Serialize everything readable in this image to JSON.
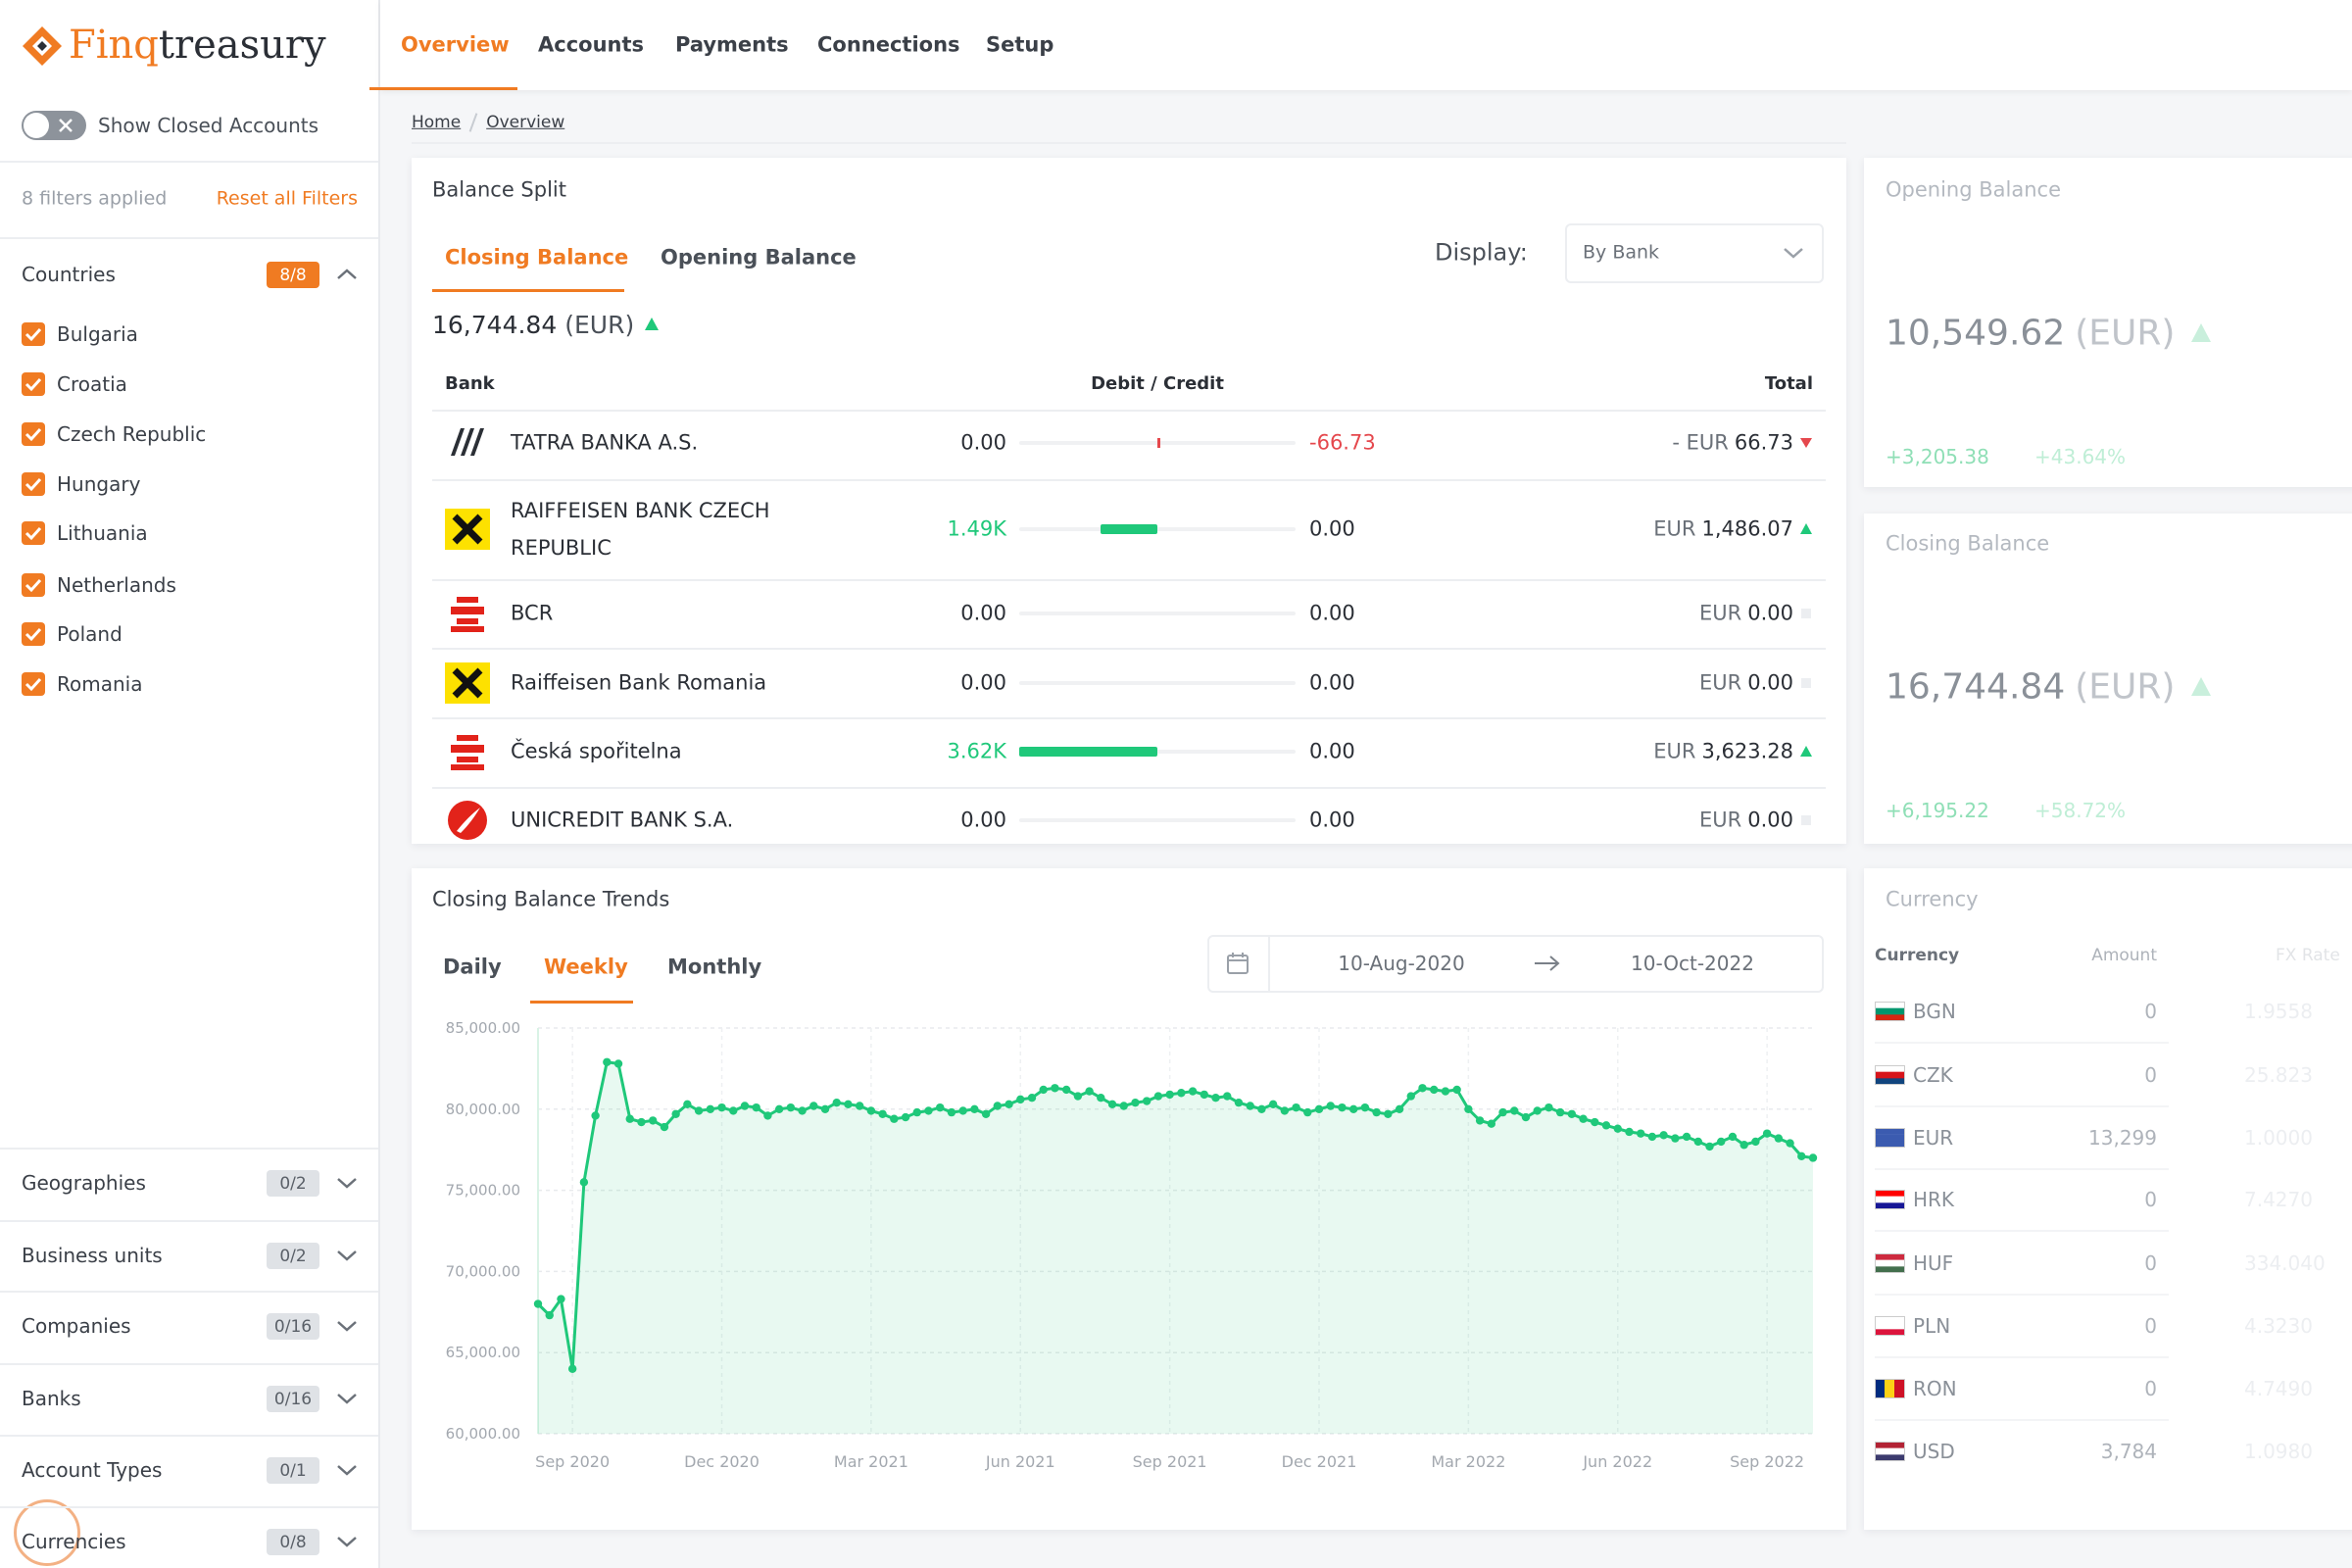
{
  "header": {
    "logo": [
      "Finq",
      "treasury"
    ],
    "nav": [
      "Overview",
      "Accounts",
      "Payments",
      "Connections",
      "Setup"
    ],
    "active_nav": 0
  },
  "sidebar": {
    "toggle_label": "Show Closed Accounts",
    "filters_applied": "8 filters applied",
    "reset": "Reset all Filters",
    "countries": {
      "title": "Countries",
      "badge": "8/8",
      "items": [
        "Bulgaria",
        "Croatia",
        "Czech Republic",
        "Hungary",
        "Lithuania",
        "Netherlands",
        "Poland",
        "Romania"
      ]
    },
    "groups": [
      {
        "title": "Geographies",
        "badge": "0/2"
      },
      {
        "title": "Business units",
        "badge": "0/2"
      },
      {
        "title": "Companies",
        "badge": "0/16"
      },
      {
        "title": "Banks",
        "badge": "0/16"
      },
      {
        "title": "Account Types",
        "badge": "0/1"
      },
      {
        "title": "Currencies",
        "badge": "0/8"
      }
    ]
  },
  "breadcrumb": [
    "Home",
    "Overview"
  ],
  "balance_split": {
    "title": "Balance Split",
    "tabs": [
      "Closing Balance",
      "Opening Balance"
    ],
    "active_tab": 0,
    "display_label": "Display:",
    "display_value": "By Bank",
    "total": "16,744.84",
    "total_currency": "(EUR)",
    "columns": [
      "Bank",
      "Debit / Credit",
      "Total"
    ],
    "rows": [
      {
        "bank": "TATRA BANKA A.S.",
        "debit": {
          "value": 0,
          "label": "0.00"
        },
        "credit": {
          "value": -66.73,
          "label": "-66.73"
        },
        "total_prefix": "- EUR",
        "total": "66.73",
        "trend": "down"
      },
      {
        "bank": "RAIFFEISEN BANK CZECH REPUBLIC",
        "debit": {
          "value": 1486.07,
          "label": "1.49K"
        },
        "credit": {
          "value": 0,
          "label": "0.00"
        },
        "total_prefix": "EUR",
        "total": "1,486.07",
        "trend": "up"
      },
      {
        "bank": "BCR",
        "debit": {
          "value": 0,
          "label": "0.00"
        },
        "credit": {
          "value": 0,
          "label": "0.00"
        },
        "total_prefix": "EUR",
        "total": "0.00",
        "trend": "flat"
      },
      {
        "bank": "Raiffeisen Bank Romania",
        "debit": {
          "value": 0,
          "label": "0.00"
        },
        "credit": {
          "value": 0,
          "label": "0.00"
        },
        "total_prefix": "EUR",
        "total": "0.00",
        "trend": "flat"
      },
      {
        "bank": "Česká spořitelna",
        "debit": {
          "value": 3623.28,
          "label": "3.62K"
        },
        "credit": {
          "value": 0,
          "label": "0.00"
        },
        "total_prefix": "EUR",
        "total": "3,623.28",
        "trend": "up"
      },
      {
        "bank": "UNICREDIT BANK S.A.",
        "debit": {
          "value": 0,
          "label": "0.00"
        },
        "credit": {
          "value": 0,
          "label": "0.00"
        },
        "total_prefix": "EUR",
        "total": "0.00",
        "trend": "flat"
      }
    ]
  },
  "opening_balance": {
    "title": "Opening Balance",
    "value": "10,549.62",
    "currency": "(EUR)",
    "change": "+3,205.38",
    "change_pct": "+43.64%"
  },
  "closing_balance": {
    "title": "Closing Balance",
    "value": "16,744.84",
    "currency": "(EUR)",
    "change": "+6,195.22",
    "change_pct": "+58.72%"
  },
  "currency": {
    "title": "Currency",
    "columns": [
      "Currency",
      "Amount",
      "FX Rate"
    ],
    "rows": [
      [
        "BGN",
        "0",
        "1.9558"
      ],
      [
        "CZK",
        "0",
        "25.823"
      ],
      [
        "EUR",
        "13,299",
        "1.0000"
      ],
      [
        "HRK",
        "0",
        "7.4270"
      ],
      [
        "HUF",
        "0",
        "334.040"
      ],
      [
        "PLN",
        "0",
        "4.3230"
      ],
      [
        "RON",
        "0",
        "4.7490"
      ],
      [
        "USD",
        "3,784",
        "1.0980"
      ]
    ]
  },
  "trends": {
    "tabs": [
      "Daily",
      "Weekly",
      "Monthly"
    ],
    "active_tab": 1,
    "date_from": "10-Aug-2020",
    "date_to": "10-Oct-2022"
  },
  "chart_data": {
    "type": "line",
    "title": "Closing Balance Trends",
    "color": "#1fc87a",
    "grid": true,
    "categories": [
      null,
      null,
      null,
      "Sep 2020",
      null,
      null,
      null,
      null,
      null,
      null,
      null,
      null,
      null,
      null,
      null,
      null,
      "Dec 2020",
      null,
      null,
      null,
      null,
      null,
      null,
      null,
      null,
      null,
      null,
      null,
      null,
      "Mar 2021",
      null,
      null,
      null,
      null,
      null,
      null,
      null,
      null,
      null,
      null,
      null,
      null,
      "Jun 2021",
      null,
      null,
      null,
      null,
      null,
      null,
      null,
      null,
      null,
      null,
      null,
      null,
      "Sep 2021",
      null,
      null,
      null,
      null,
      null,
      null,
      null,
      null,
      null,
      null,
      null,
      null,
      "Dec 2021",
      null,
      null,
      null,
      null,
      null,
      null,
      null,
      null,
      null,
      null,
      null,
      null,
      "Mar 2022",
      null,
      null,
      null,
      null,
      null,
      null,
      null,
      null,
      null,
      null,
      null,
      null,
      "Jun 2022",
      null,
      null,
      null,
      null,
      null,
      null,
      null,
      null,
      null,
      null,
      null,
      null,
      "Sep 2022",
      null,
      null,
      null,
      null
    ],
    "values": [
      68000,
      67300,
      68300,
      64000,
      75500,
      79600,
      82900,
      82800,
      79400,
      79200,
      79300,
      78900,
      79700,
      80300,
      79900,
      80000,
      80100,
      79900,
      80200,
      80100,
      79600,
      80000,
      80100,
      79900,
      80200,
      80000,
      80400,
      80300,
      80200,
      79900,
      79700,
      79400,
      79500,
      79800,
      79900,
      80100,
      79800,
      79900,
      80000,
      79700,
      80200,
      80300,
      80600,
      80700,
      81200,
      81300,
      81200,
      80800,
      81100,
      80700,
      80300,
      80200,
      80400,
      80500,
      80800,
      80900,
      81000,
      81100,
      80900,
      80700,
      80800,
      80400,
      80200,
      80000,
      80300,
      79900,
      80100,
      79800,
      80000,
      80200,
      80100,
      80000,
      80100,
      79800,
      79700,
      80000,
      80800,
      81300,
      81200,
      81100,
      81200,
      80000,
      79300,
      79100,
      79800,
      79900,
      79500,
      79900,
      80100,
      79800,
      79700,
      79400,
      79200,
      79000,
      78800,
      78600,
      78500,
      78300,
      78400,
      78200,
      78300,
      78000,
      77700,
      78000,
      78300,
      77800,
      78000,
      78500,
      78200,
      77900,
      77100,
      77000
    ],
    "ylim": [
      60000,
      85000
    ],
    "yticks": [
      {
        "value": 60000,
        "label": "60,000.00"
      },
      {
        "value": 65000,
        "label": "65,000.00"
      },
      {
        "value": 70000,
        "label": "70,000.00"
      },
      {
        "value": 75000,
        "label": "75,000.00"
      },
      {
        "value": 80000,
        "label": "80,000.00"
      },
      {
        "value": 85000,
        "label": "85,000.00"
      }
    ]
  }
}
